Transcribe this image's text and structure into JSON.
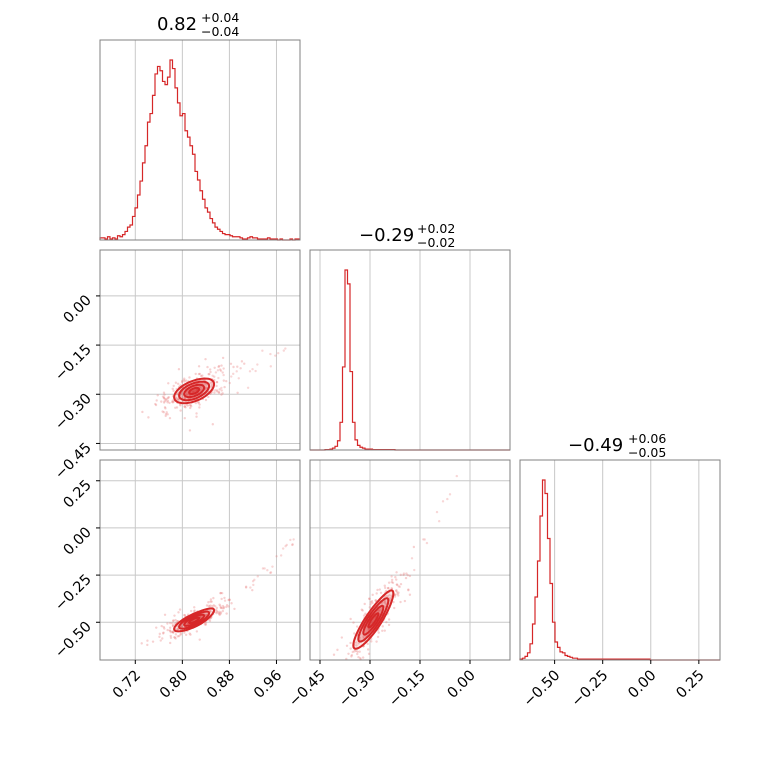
{
  "figure": {
    "type": "corner_plot",
    "color": "#d62728"
  },
  "chart_data": [
    {
      "type": "histogram",
      "panel": "x",
      "title_main": "0.82",
      "title_up": "+0.04",
      "title_down": "−0.04",
      "xlim": [
        0.66,
        1.0
      ],
      "edges_start": 0.66,
      "bin_width": 0.00425,
      "counts": [
        2,
        2,
        1,
        3,
        1,
        2,
        1,
        4,
        3,
        5,
        8,
        12,
        14,
        22,
        30,
        42,
        55,
        72,
        88,
        110,
        118,
        135,
        155,
        162,
        158,
        148,
        145,
        152,
        168,
        160,
        142,
        128,
        116,
        118,
        102,
        96,
        88,
        80,
        64,
        56,
        46,
        38,
        30,
        26,
        20,
        16,
        12,
        10,
        8,
        6,
        5,
        5,
        4,
        3,
        3,
        3,
        2,
        1,
        1,
        2,
        3,
        2,
        2,
        1,
        1,
        1,
        1,
        2,
        1,
        1,
        1,
        0,
        1,
        0,
        0,
        0,
        1,
        0,
        1,
        1
      ],
      "quantiles": [
        0.78,
        0.82,
        0.86
      ],
      "ticks": [
        0.72,
        0.8,
        0.88,
        0.96
      ],
      "tick_labels": [
        "0.72",
        "0.80",
        "0.88",
        "0.96"
      ]
    },
    {
      "type": "histogram",
      "panel": "y",
      "title_main": "−0.29",
      "title_up": "+0.02",
      "title_down": "−0.02",
      "xlim": [
        -0.48,
        0.12
      ],
      "edges_start": -0.48,
      "bin_width": 0.0075,
      "counts": [
        0,
        0,
        0,
        0,
        0,
        0,
        1,
        1,
        2,
        4,
        8,
        20,
        60,
        180,
        390,
        360,
        170,
        60,
        22,
        10,
        6,
        4,
        2,
        2,
        2,
        1,
        1,
        1,
        1,
        1,
        1,
        1,
        1,
        1,
        0,
        0,
        0,
        0,
        0,
        0,
        0,
        0,
        0,
        0,
        0,
        0,
        0,
        0,
        0,
        0,
        0,
        0,
        0,
        0,
        0,
        0,
        0,
        0,
        0,
        0,
        0,
        0,
        0,
        0,
        0,
        0,
        0,
        0,
        0,
        0,
        0,
        0,
        0,
        0,
        0,
        0,
        0,
        0,
        0,
        0
      ],
      "quantiles": [
        -0.31,
        -0.29,
        -0.27
      ],
      "ticks": [
        -0.45,
        -0.3,
        -0.15,
        0.0
      ],
      "tick_labels": [
        "−0.45",
        "−0.30",
        "−0.15",
        "0.00"
      ]
    },
    {
      "type": "histogram",
      "panel": "z",
      "title_main": "−0.49",
      "title_up": "+0.06",
      "title_down": "−0.05",
      "xlim": [
        -0.68,
        0.36
      ],
      "edges_start": -0.68,
      "bin_width": 0.013,
      "counts": [
        1,
        2,
        4,
        8,
        18,
        40,
        70,
        110,
        160,
        200,
        185,
        135,
        85,
        42,
        20,
        14,
        9,
        8,
        5,
        4,
        3,
        2,
        2,
        1,
        1,
        1,
        1,
        1,
        1,
        1,
        1,
        1,
        1,
        1,
        1,
        1,
        1,
        1,
        1,
        1,
        1,
        1,
        1,
        1,
        1,
        1,
        1,
        1,
        1,
        1,
        1,
        1,
        0,
        0,
        0,
        0,
        0,
        0,
        0,
        0,
        0,
        0,
        0,
        0,
        0,
        0,
        0,
        0,
        0,
        0,
        0,
        0,
        0,
        0,
        0,
        0,
        0,
        0,
        0,
        0
      ],
      "quantiles": [
        -0.54,
        -0.49,
        -0.43
      ],
      "ticks": [
        -0.5,
        -0.25,
        0.0,
        0.25
      ],
      "tick_labels": [
        "−0.50",
        "−0.25",
        "0.00",
        "0.25"
      ]
    },
    {
      "type": "scatter_contour",
      "panel": "y_vs_x",
      "xlim": [
        0.66,
        1.0
      ],
      "ylim": [
        -0.47,
        0.14
      ],
      "yticks": [
        0.0,
        -0.15,
        -0.3,
        -0.45
      ],
      "ytick_labels": [
        "0.00",
        "−0.15",
        "−0.30",
        "−0.45"
      ],
      "relation": {
        "slope": 0.55,
        "curve": 1.8,
        "anchor_x": 0.82,
        "anchor_y": -0.29,
        "spread": 0.018
      },
      "contour_levels": [
        0.5,
        1.0,
        1.5,
        2.0
      ]
    },
    {
      "type": "scatter_contour",
      "panel": "z_vs_x",
      "xlim": [
        0.66,
        1.0
      ],
      "ylim": [
        -0.7,
        0.36
      ],
      "yticks": [
        0.25,
        0.0,
        -0.25,
        -0.5
      ],
      "ytick_labels": [
        "0.25",
        "0.00",
        "−0.25",
        "−0.50"
      ],
      "relation": {
        "slope": 1.35,
        "curve": 6.5,
        "anchor_x": 0.82,
        "anchor_y": -0.49,
        "spread": 0.02
      },
      "contour_levels": [
        0.5,
        1.0,
        1.5,
        2.0
      ]
    },
    {
      "type": "scatter_contour",
      "panel": "z_vs_y",
      "xlim": [
        -0.48,
        0.12
      ],
      "ylim": [
        -0.7,
        0.36
      ],
      "relation": {
        "slope": 2.2,
        "curve": 3.0,
        "anchor_x": -0.29,
        "anchor_y": -0.49,
        "spread": 0.04
      },
      "contour_levels": [
        0.5,
        1.0,
        1.5,
        2.0
      ]
    }
  ]
}
